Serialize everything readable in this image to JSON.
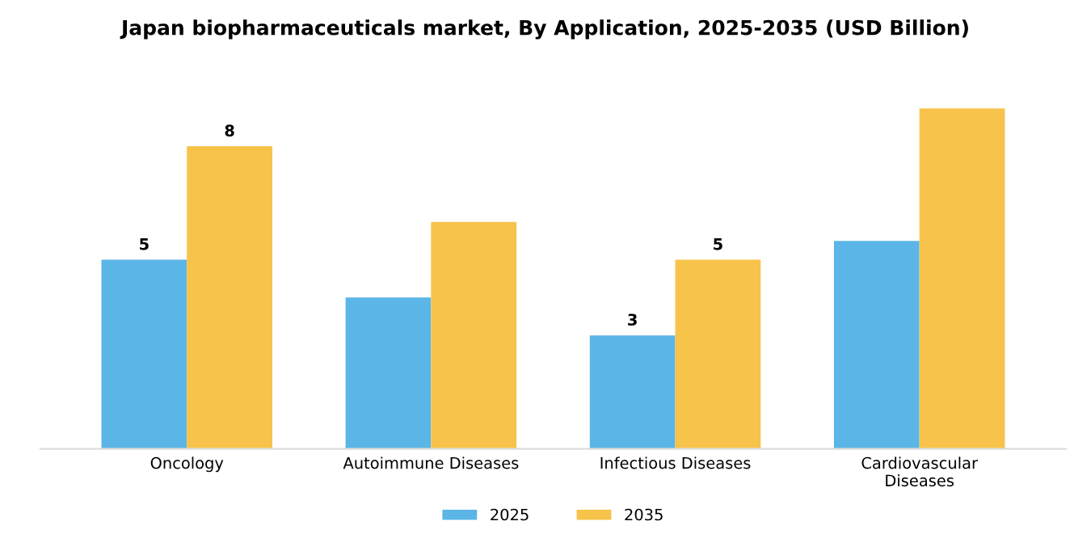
{
  "chart_data": {
    "type": "bar",
    "title": "Japan biopharmaceuticals market, By Application, 2025-2035 (USD Billion)",
    "categories": [
      "Oncology",
      "Autoimmune Diseases",
      "Infectious Diseases",
      "Cardiovascular\nDiseases"
    ],
    "series": [
      {
        "name": "2025",
        "color": "#5bb5e6",
        "values": [
          5,
          4,
          3,
          5.5
        ],
        "value_labels": [
          "5",
          null,
          "3",
          null
        ]
      },
      {
        "name": "2035",
        "color": "#f7c34a",
        "values": [
          8,
          6,
          5,
          9
        ],
        "value_labels": [
          "8",
          null,
          "5",
          null
        ]
      }
    ],
    "tick_labels": "x",
    "grid": false,
    "legend": "bottom"
  }
}
